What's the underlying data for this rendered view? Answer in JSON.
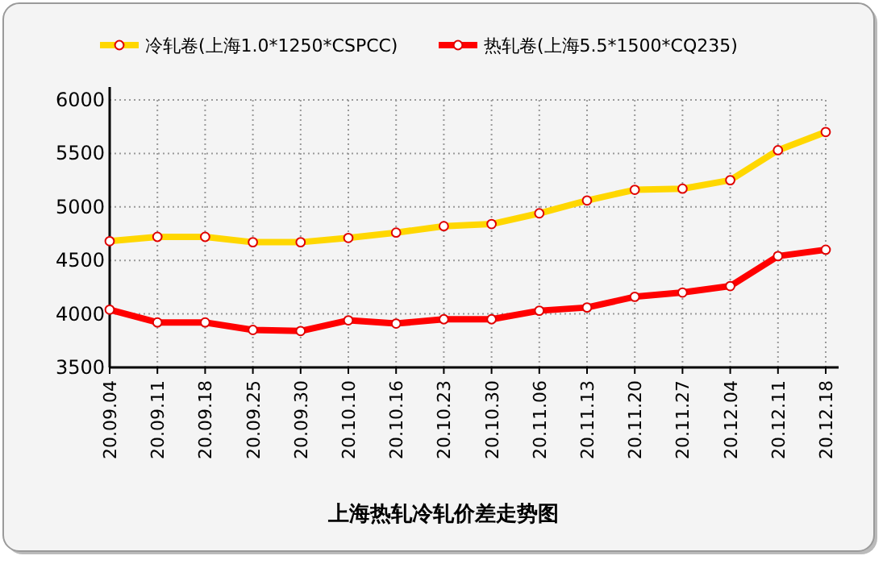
{
  "chart_data": {
    "type": "line",
    "title": "上海热轧冷轧价差走势图",
    "categories": [
      "20.09.04",
      "20.09.11",
      "20.09.18",
      "20.09.25",
      "20.09.30",
      "20.10.10",
      "20.10.16",
      "20.10.23",
      "20.10.30",
      "20.11.06",
      "20.11.13",
      "20.11.20",
      "20.11.27",
      "20.12.04",
      "20.12.11",
      "20.12.18"
    ],
    "series": [
      {
        "name": "冷轧卷(上海1.0*1250*CSPCC)",
        "color": "#ffd700",
        "values": [
          4680,
          4720,
          4720,
          4670,
          4670,
          4710,
          4760,
          4820,
          4840,
          4940,
          5060,
          5160,
          5170,
          5250,
          5530,
          5700
        ]
      },
      {
        "name": "热轧卷(上海5.5*1500*CQ235)",
        "color": "#ff0000",
        "values": [
          4040,
          3920,
          3920,
          3850,
          3840,
          3940,
          3910,
          3950,
          3950,
          4030,
          4060,
          4160,
          4200,
          4260,
          4540,
          4600
        ]
      }
    ],
    "ylim": [
      3500,
      6000
    ],
    "yticks": [
      3500,
      4000,
      4500,
      5000,
      5500,
      6000
    ],
    "grid": true,
    "legend": "top",
    "marker": "circle",
    "line_style": "solid"
  }
}
